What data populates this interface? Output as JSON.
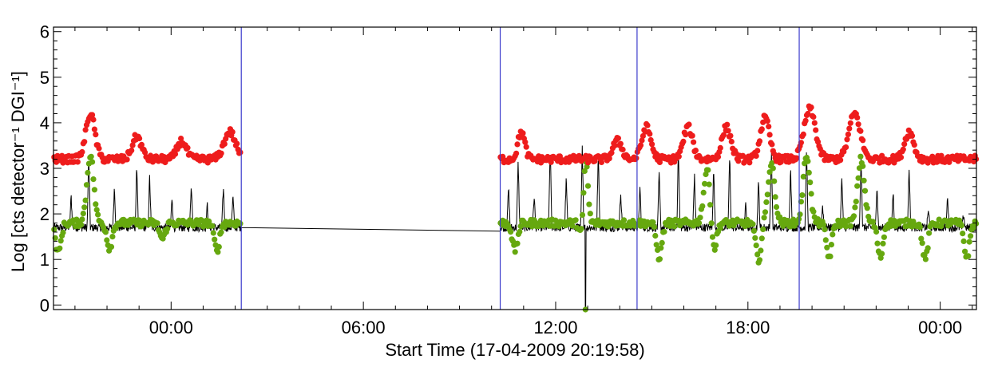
{
  "chart_data": {
    "type": "scatter",
    "xlabel": "Start Time (17-04-2009 20:19:58)",
    "ylabel": "Log [cts detector⁻¹ DGI⁻¹]",
    "x_unit": "hours after 17-04-2009 20:19:58",
    "xlim": [
      0,
      28.8
    ],
    "ylim": [
      -0.1,
      6.1
    ],
    "x_ticks": [
      {
        "value": 3.67,
        "label": "00:00"
      },
      {
        "value": 9.67,
        "label": "06:00"
      },
      {
        "value": 15.67,
        "label": "12:00"
      },
      {
        "value": 21.67,
        "label": "18:00"
      },
      {
        "value": 27.67,
        "label": "00:00"
      }
    ],
    "y_ticks": [
      {
        "value": 0,
        "label": "0"
      },
      {
        "value": 1,
        "label": "1"
      },
      {
        "value": 2,
        "label": "2"
      },
      {
        "value": 3,
        "label": "3"
      },
      {
        "value": 4,
        "label": "4"
      },
      {
        "value": 5,
        "label": "5"
      },
      {
        "value": 6,
        "label": "6"
      }
    ],
    "vertical_lines_x": [
      5.86,
      13.94,
      18.21,
      23.27
    ],
    "data_gap": [
      5.86,
      13.94
    ],
    "series": [
      {
        "color": "#ee1c1c",
        "marker": "dot",
        "baseline": 3.2,
        "peaks": [
          {
            "x": 1.15,
            "y": 4.2,
            "w": 0.2
          },
          {
            "x": 2.6,
            "y": 3.7,
            "w": 0.2
          },
          {
            "x": 4.0,
            "y": 3.6,
            "w": 0.2
          },
          {
            "x": 5.5,
            "y": 3.8,
            "w": 0.25
          },
          {
            "x": 14.6,
            "y": 3.8,
            "w": 0.15
          },
          {
            "x": 17.6,
            "y": 3.6,
            "w": 0.2
          },
          {
            "x": 18.5,
            "y": 3.9,
            "w": 0.2
          },
          {
            "x": 19.8,
            "y": 3.9,
            "w": 0.2
          },
          {
            "x": 21.0,
            "y": 3.9,
            "w": 0.2
          },
          {
            "x": 22.2,
            "y": 4.1,
            "w": 0.2
          },
          {
            "x": 23.6,
            "y": 4.3,
            "w": 0.25
          },
          {
            "x": 25.0,
            "y": 4.2,
            "w": 0.25
          },
          {
            "x": 26.7,
            "y": 3.8,
            "w": 0.2
          }
        ]
      },
      {
        "color": "#66a80f",
        "marker": "dot",
        "baseline": 1.8,
        "peaks": [
          {
            "x": 1.15,
            "y": 3.3,
            "w": 0.15
          },
          {
            "x": 16.6,
            "y": 3.8,
            "w": 0.1
          },
          {
            "x": 20.4,
            "y": 3.0,
            "w": 0.15
          },
          {
            "x": 22.4,
            "y": 3.1,
            "w": 0.15
          },
          {
            "x": 23.5,
            "y": 3.3,
            "w": 0.15
          },
          {
            "x": 25.2,
            "y": 3.2,
            "w": 0.15
          }
        ],
        "dips": [
          {
            "x": 0.15,
            "y": 1.15
          },
          {
            "x": 1.75,
            "y": 1.25
          },
          {
            "x": 3.4,
            "y": 1.45
          },
          {
            "x": 5.1,
            "y": 1.2
          },
          {
            "x": 14.4,
            "y": 1.2
          },
          {
            "x": 16.55,
            "y": 1.0
          },
          {
            "x": 18.9,
            "y": 1.05
          },
          {
            "x": 20.6,
            "y": 1.1
          },
          {
            "x": 22.0,
            "y": 1.0
          },
          {
            "x": 24.2,
            "y": 1.05
          },
          {
            "x": 25.8,
            "y": 1.05
          },
          {
            "x": 27.2,
            "y": 1.0
          },
          {
            "x": 28.5,
            "y": 1.05
          }
        ],
        "outliers": [
          {
            "x": 16.6,
            "y": -0.1
          }
        ]
      },
      {
        "color": "#000000",
        "marker": "line",
        "baseline": 1.7,
        "gap_from": [
          5.86,
          1.7
        ],
        "gap_to": [
          13.94,
          1.62
        ],
        "spikes": [
          {
            "x": 0.55,
            "y": 2.4
          },
          {
            "x": 1.1,
            "y": 3.3
          },
          {
            "x": 1.9,
            "y": 2.6
          },
          {
            "x": 2.6,
            "y": 3.1
          },
          {
            "x": 3.0,
            "y": 2.8
          },
          {
            "x": 3.7,
            "y": 2.4
          },
          {
            "x": 4.3,
            "y": 2.7
          },
          {
            "x": 4.8,
            "y": 2.2
          },
          {
            "x": 5.3,
            "y": 2.6
          },
          {
            "x": 5.6,
            "y": 2.4
          },
          {
            "x": 14.2,
            "y": 2.6
          },
          {
            "x": 14.5,
            "y": 3.2
          },
          {
            "x": 15.0,
            "y": 2.4
          },
          {
            "x": 15.5,
            "y": 3.5
          },
          {
            "x": 16.0,
            "y": 2.8
          },
          {
            "x": 16.5,
            "y": 3.5
          },
          {
            "x": 17.0,
            "y": 3.4
          },
          {
            "x": 17.7,
            "y": 2.5
          },
          {
            "x": 18.3,
            "y": 2.6
          },
          {
            "x": 18.9,
            "y": 2.9
          },
          {
            "x": 19.5,
            "y": 3.4
          },
          {
            "x": 20.0,
            "y": 2.9
          },
          {
            "x": 20.6,
            "y": 3.0
          },
          {
            "x": 21.1,
            "y": 3.3
          },
          {
            "x": 21.6,
            "y": 2.2
          },
          {
            "x": 22.0,
            "y": 2.7
          },
          {
            "x": 22.4,
            "y": 3.4
          },
          {
            "x": 23.0,
            "y": 3.0
          },
          {
            "x": 23.5,
            "y": 3.4
          },
          {
            "x": 24.0,
            "y": 2.2
          },
          {
            "x": 24.6,
            "y": 2.8
          },
          {
            "x": 25.2,
            "y": 3.3
          },
          {
            "x": 25.7,
            "y": 2.6
          },
          {
            "x": 26.2,
            "y": 2.5
          },
          {
            "x": 26.7,
            "y": 3.0
          },
          {
            "x": 27.3,
            "y": 2.1
          },
          {
            "x": 27.9,
            "y": 2.4
          },
          {
            "x": 28.4,
            "y": 2.0
          }
        ],
        "dropout": {
          "x": 16.6,
          "y": -0.1
        }
      }
    ],
    "grid": false,
    "legend": "none"
  }
}
